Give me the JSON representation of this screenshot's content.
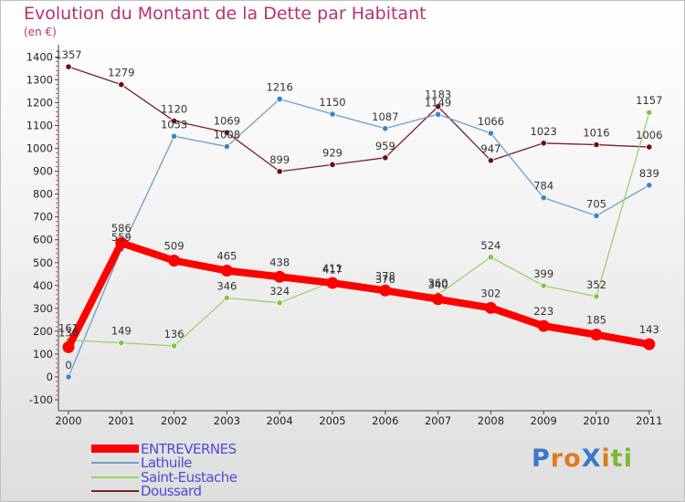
{
  "header": {
    "title": "Evolution du Montant de la Dette par Habitant",
    "unit": "(en €)"
  },
  "logo": {
    "text": "ProXiti",
    "letters": [
      {
        "ch": "P",
        "color": "#3a78c8"
      },
      {
        "ch": "r",
        "color": "#e07b1c"
      },
      {
        "ch": "o",
        "color": "#e07b1c"
      },
      {
        "ch": "X",
        "color": "#3a78c8"
      },
      {
        "ch": "i",
        "color": "#e07b1c"
      },
      {
        "ch": "t",
        "color": "#7dbb2f"
      },
      {
        "ch": "i",
        "color": "#7dbb2f"
      }
    ]
  },
  "chart_data": {
    "type": "line",
    "title": "Evolution du Montant de la Dette par Habitant",
    "subtitle": "(en €)",
    "xlabel": "",
    "ylabel": "",
    "x": [
      "2000",
      "2001",
      "2002",
      "2003",
      "2004",
      "2005",
      "2006",
      "2007",
      "2008",
      "2009",
      "2010",
      "2011"
    ],
    "ylim": [
      -100,
      1400
    ],
    "yticks": [
      -100,
      0,
      100,
      200,
      300,
      400,
      500,
      600,
      700,
      800,
      900,
      1000,
      1100,
      1200,
      1300,
      1400
    ],
    "grid": false,
    "legend_position": "bottom-left",
    "series": [
      {
        "name": "Doussard",
        "color": "#7a1f24",
        "dot": "#6b1010",
        "width": 1.3,
        "values": [
          1357,
          1279,
          1120,
          1069,
          899,
          929,
          959,
          1183,
          947,
          1023,
          1016,
          1006
        ]
      },
      {
        "name": "Lathuile",
        "color": "#6f9ec8",
        "dot": "#3a86c8",
        "width": 1.3,
        "values": [
          0,
          559,
          1053,
          1008,
          1216,
          1150,
          1087,
          1149,
          1066,
          784,
          705,
          839
        ]
      },
      {
        "name": "Saint-Eustache",
        "color": "#9ad36a",
        "dot": "#7ec843",
        "width": 1.3,
        "values": [
          161,
          149,
          136,
          346,
          324,
          417,
          376,
          360,
          524,
          399,
          352,
          1157
        ]
      },
      {
        "name": "ENTREVERNES",
        "color": "#ff0000",
        "dot": "#ff0000",
        "width": 8,
        "values": [
          130,
          586,
          509,
          465,
          438,
          411,
          378,
          340,
          302,
          223,
          185,
          143
        ]
      }
    ]
  }
}
